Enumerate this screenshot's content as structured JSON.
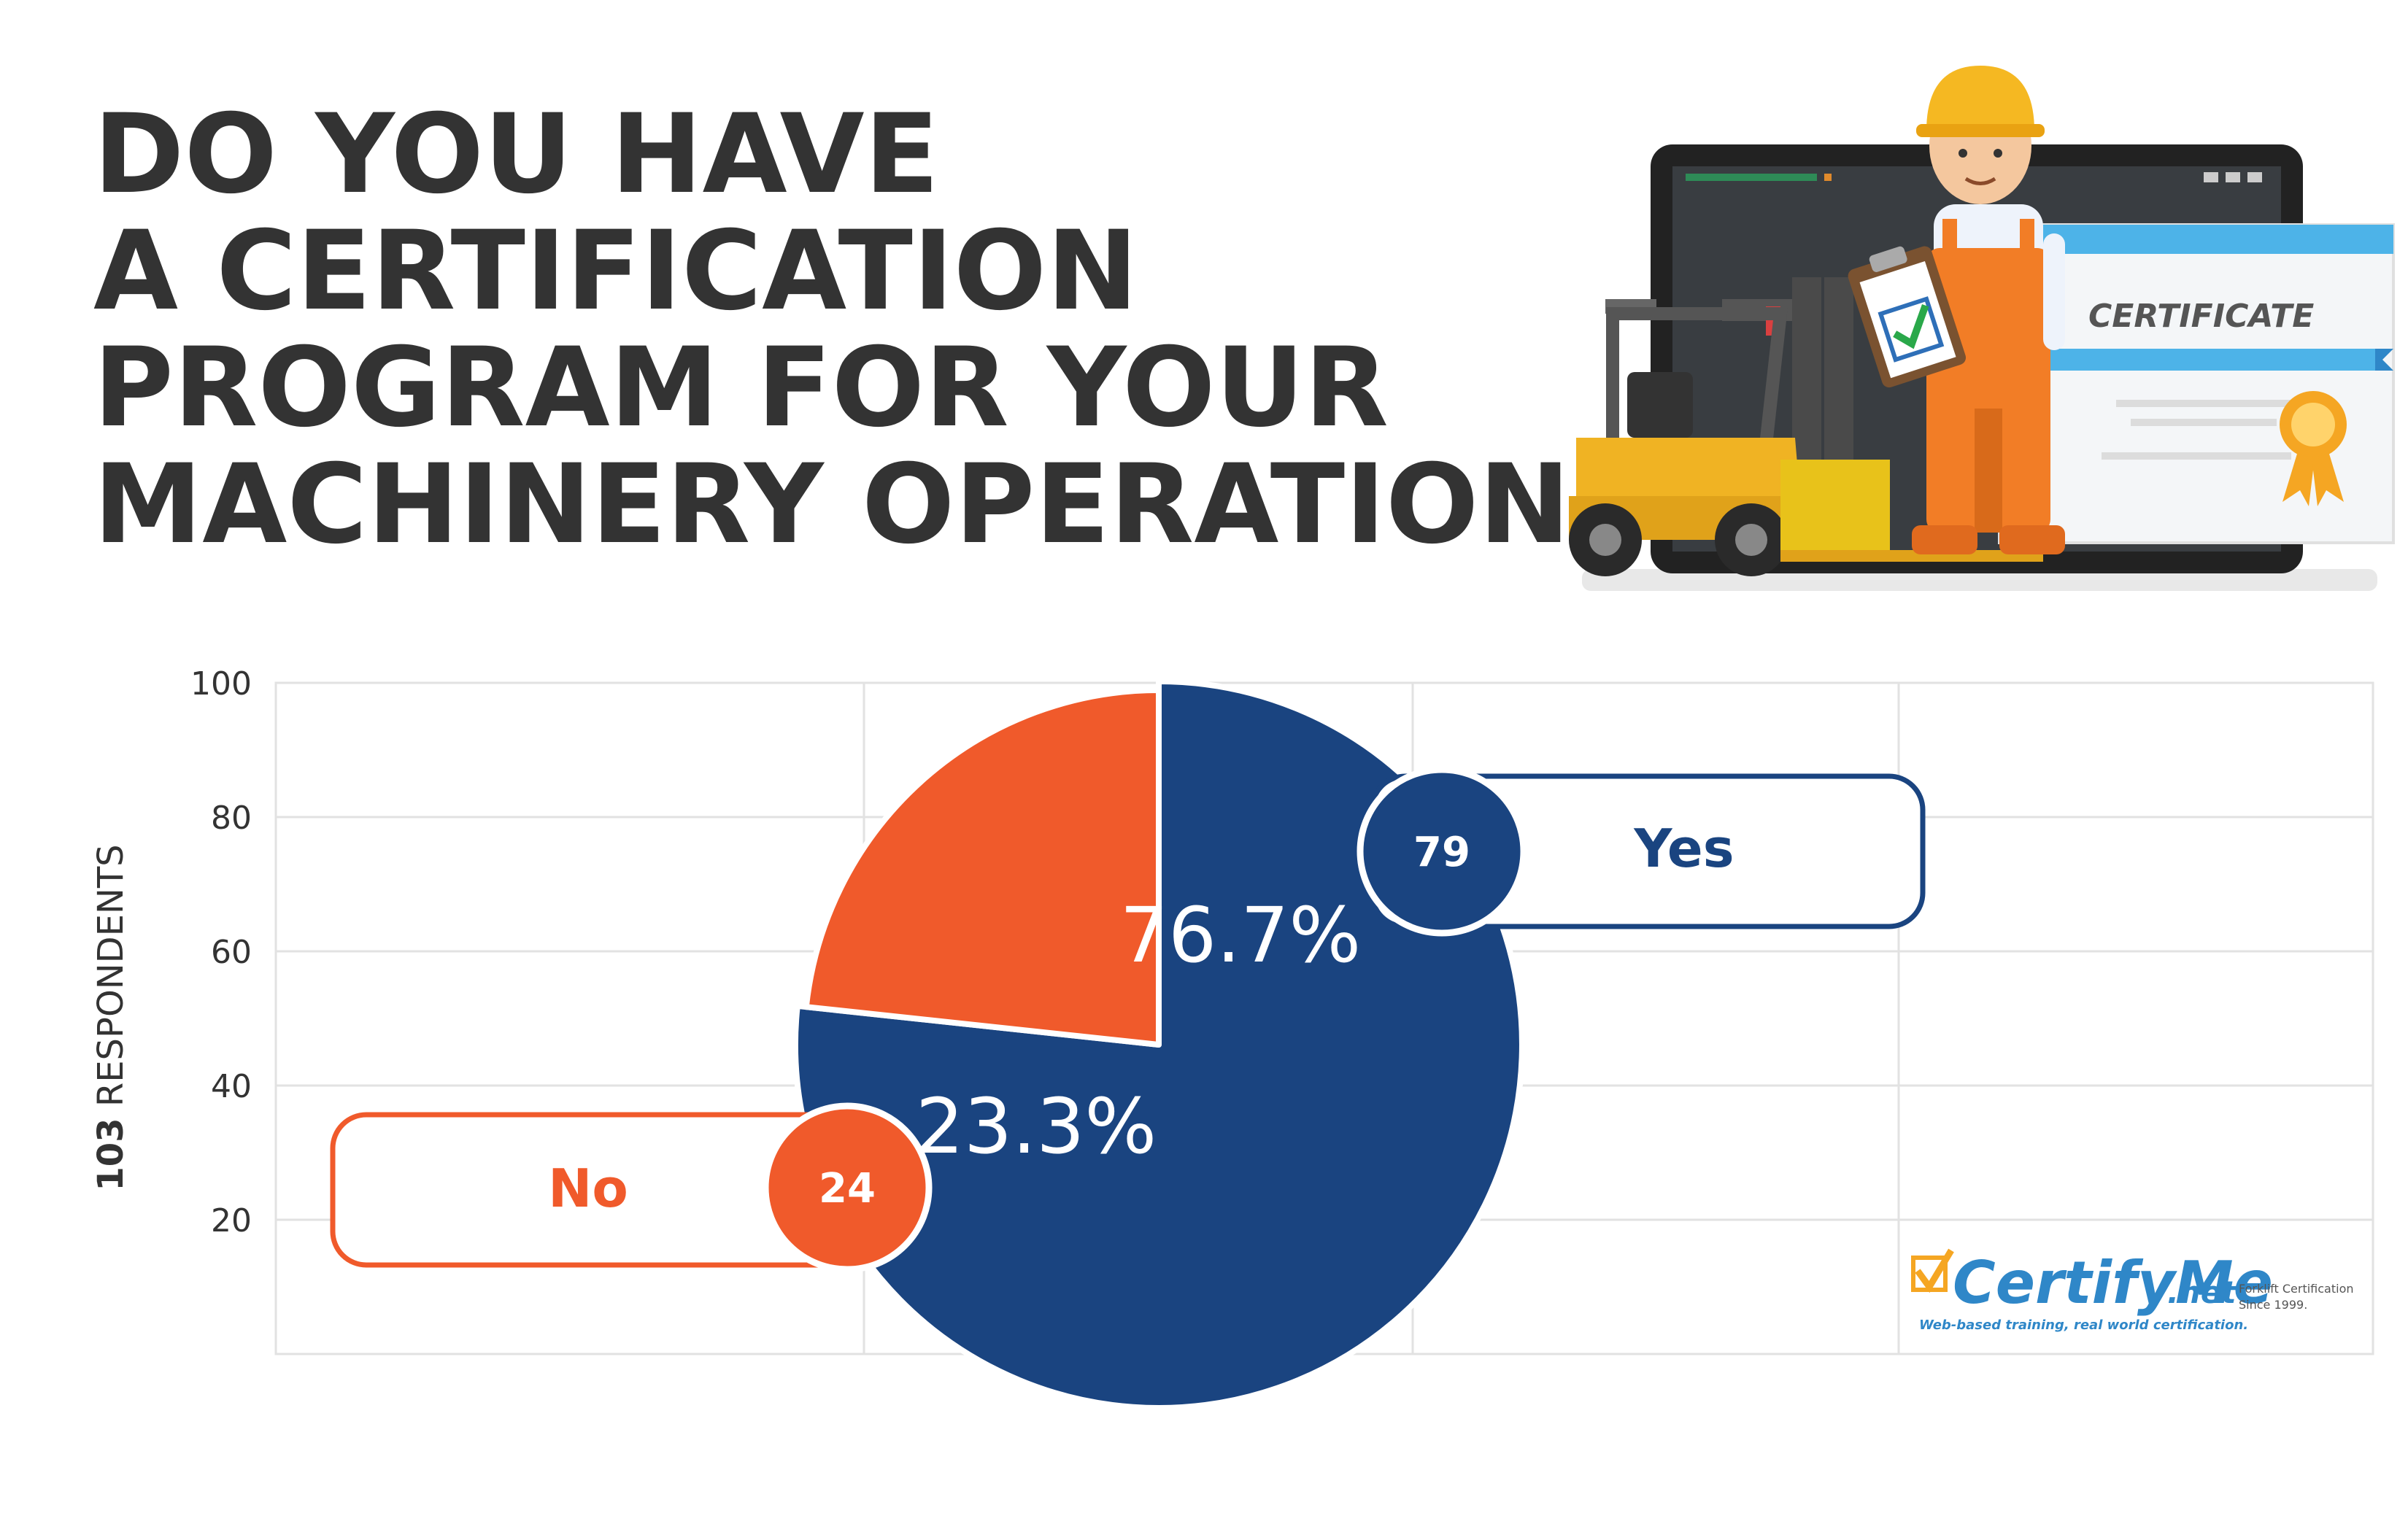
{
  "title_lines": [
    "DO YOU HAVE",
    "A CERTIFICATION",
    "PROGRAM FOR YOUR",
    "MACHINERY OPERATIONS?"
  ],
  "chart_data": {
    "type": "pie",
    "title": "DO YOU HAVE A CERTIFICATION PROGRAM FOR YOUR MACHINERY OPERATIONS?",
    "ylabel_bold": "103",
    "ylabel_rest": " RESPONDENTS",
    "y_ticks": [
      "100",
      "80",
      "60",
      "40",
      "20"
    ],
    "slices": [
      {
        "label": "Yes",
        "count": "79",
        "percent": "76.7%",
        "value": 76.7,
        "color": "#1a4480"
      },
      {
        "label": "No",
        "count": "24",
        "percent": "23.3%",
        "value": 23.3,
        "color": "#f05a2b"
      }
    ],
    "grid": true
  },
  "illustration": {
    "certificate_text": "CERTIFICATE"
  },
  "logo": {
    "name": "CertifyMe",
    "suffix": ".net",
    "tagline": "Web-based training, real world certification.",
    "side_line1": "Forklift Certification",
    "side_line2": "Since 1999."
  },
  "colors": {
    "yes": "#1a4480",
    "no": "#f05a2b",
    "title": "#333333",
    "grid": "#e2e2e2"
  }
}
